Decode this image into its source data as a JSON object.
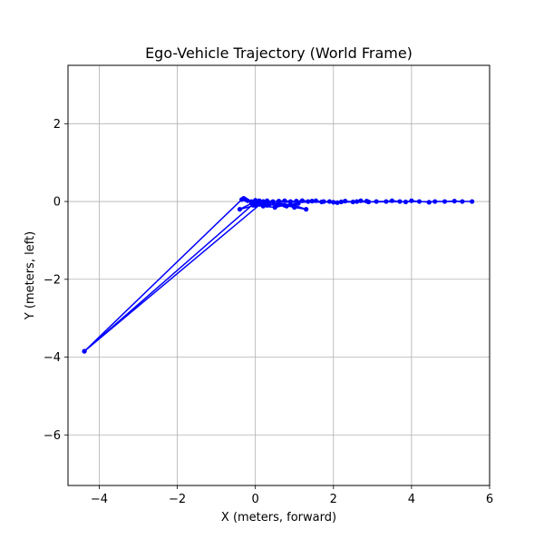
{
  "chart_data": {
    "type": "line",
    "title": "Ego-Vehicle Trajectory (World Frame)",
    "xlabel": "X (meters, forward)",
    "ylabel": "Y (meters, left)",
    "xlim": [
      -4.8,
      6.0
    ],
    "ylim": [
      -7.3,
      3.5
    ],
    "xticks": [
      -4,
      -2,
      0,
      2,
      4,
      6
    ],
    "yticks": [
      2,
      0,
      -2,
      -4,
      -6
    ],
    "xtick_labels": [
      "−4",
      "−2",
      "0",
      "2",
      "4",
      "6"
    ],
    "ytick_labels": [
      "2",
      "0",
      "−2",
      "−4",
      "−6"
    ],
    "grid": true,
    "series": [
      {
        "color": "#0000ff",
        "marker": "circle",
        "points": [
          [
            -4.38,
            -3.85
          ],
          [
            -0.35,
            0.05
          ],
          [
            -0.3,
            0.08
          ],
          [
            -0.25,
            0.05
          ],
          [
            -0.2,
            0.02
          ],
          [
            -0.1,
            0.0
          ],
          [
            0.0,
            0.03
          ],
          [
            0.1,
            0.02
          ],
          [
            0.2,
            0.0
          ],
          [
            0.3,
            0.02
          ],
          [
            0.45,
            0.0
          ],
          [
            0.6,
            0.01
          ],
          [
            0.75,
            0.02
          ],
          [
            0.9,
            0.0
          ],
          [
            1.05,
            0.01
          ],
          [
            1.2,
            0.02
          ],
          [
            1.35,
            0.0
          ],
          [
            1.55,
            0.02
          ],
          [
            1.7,
            -0.01
          ],
          [
            1.9,
            0.0
          ],
          [
            2.1,
            -0.03
          ],
          [
            2.3,
            0.01
          ],
          [
            2.5,
            -0.01
          ],
          [
            2.7,
            0.02
          ],
          [
            2.9,
            -0.01
          ],
          [
            3.1,
            0.0
          ],
          [
            3.35,
            0.0
          ],
          [
            3.5,
            0.02
          ],
          [
            3.7,
            0.0
          ],
          [
            3.85,
            -0.01
          ],
          [
            4.0,
            0.02
          ],
          [
            4.2,
            0.0
          ],
          [
            4.45,
            -0.02
          ],
          [
            4.6,
            0.0
          ],
          [
            4.85,
            0.0
          ],
          [
            5.1,
            0.01
          ],
          [
            5.3,
            0.0
          ],
          [
            5.55,
            0.0
          ],
          [
            0.6,
            -0.02
          ],
          [
            0.3,
            -0.1
          ],
          [
            0.0,
            -0.05
          ],
          [
            -0.05,
            -0.1
          ],
          [
            0.2,
            -0.12
          ],
          [
            0.5,
            -0.15
          ],
          [
            0.75,
            -0.1
          ],
          [
            1.0,
            -0.15
          ],
          [
            1.3,
            -0.2
          ],
          [
            1.0,
            -0.1
          ],
          [
            0.6,
            -0.05
          ],
          [
            0.2,
            0.0
          ],
          [
            -0.1,
            -0.05
          ],
          [
            -0.4,
            -0.2
          ],
          [
            0.0,
            -0.1
          ],
          [
            0.35,
            -0.08
          ],
          [
            0.8,
            -0.12
          ],
          [
            0.15,
            -0.05
          ],
          [
            -4.38,
            -3.85
          ],
          [
            0.0,
            -0.02
          ],
          [
            0.25,
            -0.06
          ],
          [
            0.55,
            -0.1
          ],
          [
            0.9,
            -0.08
          ],
          [
            1.1,
            -0.05
          ],
          [
            1.2,
            0.02
          ],
          [
            1.45,
            0.01
          ],
          [
            1.75,
            0.0
          ],
          [
            2.0,
            -0.02
          ],
          [
            2.2,
            -0.01
          ],
          [
            2.6,
            0.0
          ],
          [
            2.85,
            0.01
          ]
        ]
      }
    ]
  }
}
